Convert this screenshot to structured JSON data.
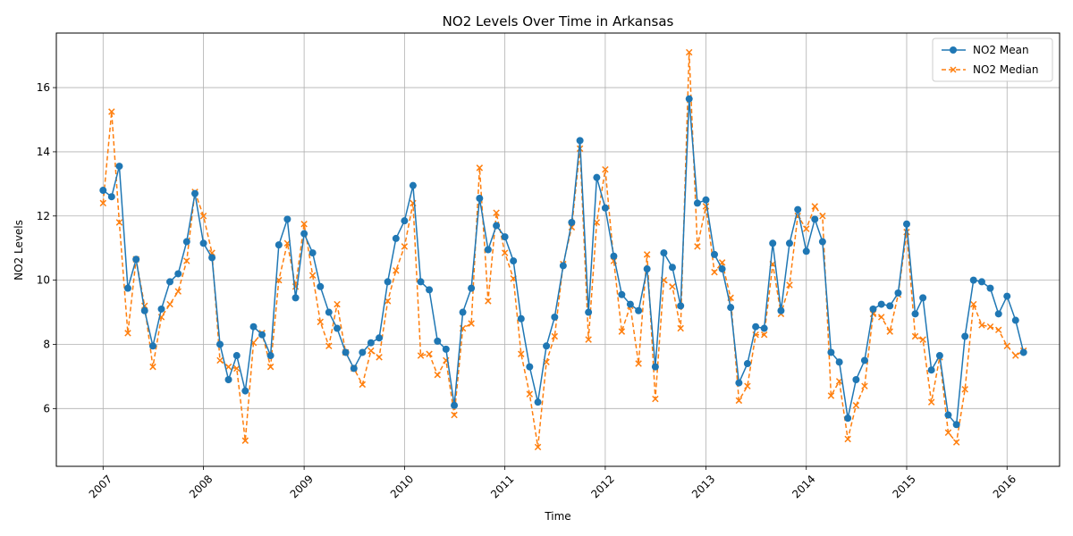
{
  "chart_data": {
    "type": "line",
    "title": "NO2 Levels Over Time in Arkansas",
    "xlabel": "Time",
    "ylabel": "NO2 Levels",
    "xlim": [
      "2006-07-15",
      "2016-07-10"
    ],
    "ylim": [
      4.2,
      17.7
    ],
    "x_tick_labels": [
      "2007",
      "2008",
      "2009",
      "2010",
      "2011",
      "2012",
      "2013",
      "2014",
      "2015",
      "2016"
    ],
    "y_ticks": [
      6,
      8,
      10,
      12,
      14,
      16
    ],
    "grid": true,
    "legend_position": "top-right",
    "x": [
      "2007-01",
      "2007-02",
      "2007-03",
      "2007-04",
      "2007-05",
      "2007-06",
      "2007-07",
      "2007-08",
      "2007-09",
      "2007-10",
      "2007-11",
      "2007-12",
      "2008-01",
      "2008-02",
      "2008-03",
      "2008-04",
      "2008-05",
      "2008-06",
      "2008-07",
      "2008-08",
      "2008-09",
      "2008-10",
      "2008-11",
      "2008-12",
      "2009-01",
      "2009-02",
      "2009-03",
      "2009-04",
      "2009-05",
      "2009-06",
      "2009-07",
      "2009-08",
      "2009-09",
      "2009-10",
      "2009-11",
      "2009-12",
      "2010-01",
      "2010-02",
      "2010-03",
      "2010-04",
      "2010-05",
      "2010-06",
      "2010-07",
      "2010-08",
      "2010-09",
      "2010-10",
      "2010-11",
      "2010-12",
      "2011-01",
      "2011-02",
      "2011-03",
      "2011-04",
      "2011-05",
      "2011-06",
      "2011-07",
      "2011-08",
      "2011-09",
      "2011-10",
      "2011-11",
      "2011-12",
      "2012-01",
      "2012-02",
      "2012-03",
      "2012-04",
      "2012-05",
      "2012-06",
      "2012-07",
      "2012-08",
      "2012-09",
      "2012-10",
      "2012-11",
      "2012-12",
      "2013-01",
      "2013-02",
      "2013-03",
      "2013-04",
      "2013-05",
      "2013-06",
      "2013-07",
      "2013-08",
      "2013-09",
      "2013-10",
      "2013-11",
      "2013-12",
      "2014-01",
      "2014-02",
      "2014-03",
      "2014-04",
      "2014-05",
      "2014-06",
      "2014-07",
      "2014-08",
      "2014-09",
      "2014-10",
      "2014-11",
      "2014-12",
      "2015-01",
      "2015-02",
      "2015-03",
      "2015-04",
      "2015-05",
      "2015-06",
      "2015-07",
      "2015-08",
      "2015-09",
      "2015-10",
      "2015-11",
      "2015-12",
      "2016-01",
      "2016-02",
      "2016-03"
    ],
    "series": [
      {
        "name": "NO2 Mean",
        "color": "#1f77b4",
        "style": "solid",
        "marker": "circle",
        "values": [
          12.8,
          12.6,
          13.55,
          9.75,
          10.65,
          9.05,
          7.95,
          9.1,
          9.95,
          10.2,
          11.2,
          12.7,
          11.15,
          10.7,
          8.0,
          6.9,
          7.65,
          6.55,
          8.55,
          8.3,
          7.65,
          11.1,
          11.9,
          9.45,
          11.45,
          10.85,
          9.8,
          9.0,
          8.5,
          7.75,
          7.25,
          7.75,
          8.05,
          8.2,
          9.95,
          11.3,
          11.85,
          12.95,
          9.95,
          9.7,
          8.1,
          7.85,
          6.1,
          9.0,
          9.75,
          12.55,
          10.95,
          11.7,
          11.35,
          10.6,
          8.8,
          7.3,
          6.2,
          7.95,
          8.85,
          10.45,
          11.8,
          14.35,
          9.0,
          13.2,
          12.25,
          10.75,
          9.55,
          9.25,
          9.05,
          10.35,
          7.3,
          10.85,
          10.4,
          9.2,
          15.65,
          12.4,
          12.5,
          10.8,
          10.35,
          9.15,
          6.8,
          7.4,
          8.55,
          8.5,
          11.15,
          9.05,
          11.15,
          12.2,
          10.9,
          11.9,
          11.2,
          7.75,
          7.45,
          5.7,
          6.9,
          7.5,
          9.1,
          9.25,
          9.2,
          9.6,
          11.75,
          8.95,
          9.45,
          7.2,
          7.65,
          5.8,
          5.5,
          8.25,
          10.0,
          9.95,
          9.75,
          8.95,
          9.5,
          8.75,
          7.75
        ]
      },
      {
        "name": "NO2 Median",
        "color": "#ff7f0e",
        "style": "dashed",
        "marker": "x",
        "values": [
          12.4,
          15.25,
          11.8,
          8.35,
          10.65,
          9.2,
          7.3,
          8.85,
          9.25,
          9.65,
          10.6,
          12.75,
          12.0,
          10.85,
          7.5,
          7.3,
          7.25,
          5.0,
          8.05,
          8.35,
          7.3,
          10.0,
          11.15,
          9.8,
          11.75,
          10.15,
          8.7,
          7.95,
          9.25,
          7.75,
          7.25,
          6.75,
          7.8,
          7.6,
          9.35,
          10.3,
          11.05,
          12.4,
          7.65,
          7.7,
          7.05,
          7.5,
          5.8,
          8.5,
          8.65,
          13.5,
          9.35,
          12.1,
          10.85,
          10.05,
          7.7,
          6.45,
          4.8,
          7.45,
          8.25,
          10.5,
          11.65,
          14.1,
          8.15,
          11.8,
          13.45,
          10.6,
          8.4,
          9.2,
          7.4,
          10.8,
          6.3,
          10.0,
          9.8,
          8.5,
          17.1,
          11.05,
          12.3,
          10.25,
          10.55,
          9.45,
          6.25,
          6.7,
          8.3,
          8.3,
          10.5,
          8.95,
          9.85,
          12.0,
          11.6,
          12.3,
          12.0,
          6.4,
          6.85,
          5.05,
          6.1,
          6.7,
          8.95,
          8.85,
          8.4,
          9.55,
          11.5,
          8.25,
          8.15,
          6.2,
          7.6,
          5.25,
          4.95,
          6.6,
          9.25,
          8.6,
          8.55,
          8.45,
          7.95,
          7.65,
          7.8
        ]
      }
    ]
  }
}
